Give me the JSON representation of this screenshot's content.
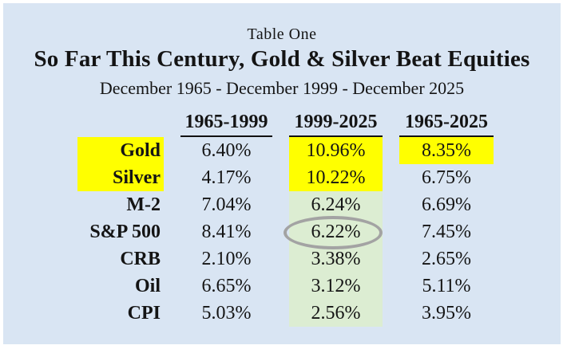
{
  "palette": {
    "canvas_bg": "#ffffff",
    "panel_bg": "#d9e5f3",
    "highlight_yellow": "#ffff00",
    "highlight_green": "#dcedd2",
    "circle_gray": "#a3a3a3",
    "text": "#141414"
  },
  "panel": {
    "caption": "Table One",
    "title": "So Far This Century, Gold & Silver Beat Equities",
    "subtitle": "December 1965 - December 1999 - December 2025"
  },
  "table": {
    "column_headers": [
      "1965-1999",
      "1999-2025",
      "1965-2025"
    ],
    "rows": [
      {
        "label": "Gold",
        "label_highlight": true,
        "values": [
          {
            "text": "6.40%",
            "bg": null
          },
          {
            "text": "10.96%",
            "bg": "yellow"
          },
          {
            "text": "8.35%",
            "bg": "yellow"
          }
        ]
      },
      {
        "label": "Silver",
        "label_highlight": true,
        "values": [
          {
            "text": "4.17%",
            "bg": null
          },
          {
            "text": "10.22%",
            "bg": "yellow"
          },
          {
            "text": "6.75%",
            "bg": null
          }
        ]
      },
      {
        "label": "M-2",
        "label_highlight": false,
        "values": [
          {
            "text": "7.04%",
            "bg": null
          },
          {
            "text": "6.24%",
            "bg": "green"
          },
          {
            "text": "6.69%",
            "bg": null
          }
        ]
      },
      {
        "label": "S&P 500",
        "label_highlight": false,
        "values": [
          {
            "text": "8.41%",
            "bg": null
          },
          {
            "text": "6.22%",
            "bg": "green",
            "circled": true
          },
          {
            "text": "7.45%",
            "bg": null
          }
        ]
      },
      {
        "label": "CRB",
        "label_highlight": false,
        "values": [
          {
            "text": "2.10%",
            "bg": null
          },
          {
            "text": "3.38%",
            "bg": "green"
          },
          {
            "text": "2.65%",
            "bg": null
          }
        ]
      },
      {
        "label": "Oil",
        "label_highlight": false,
        "values": [
          {
            "text": "6.65%",
            "bg": null
          },
          {
            "text": "3.12%",
            "bg": "green"
          },
          {
            "text": "5.11%",
            "bg": null
          }
        ]
      },
      {
        "label": "CPI",
        "label_highlight": false,
        "values": [
          {
            "text": "5.03%",
            "bg": null
          },
          {
            "text": "2.56%",
            "bg": "green"
          },
          {
            "text": "3.95%",
            "bg": null
          }
        ]
      }
    ]
  },
  "chart_data": {
    "type": "table",
    "caption": "Table One",
    "title": "So Far This Century, Gold & Silver Beat Equities",
    "subtitle": "December 1965 - December 1999 - December 2025",
    "columns": [
      "1965-1999",
      "1999-2025",
      "1965-2025"
    ],
    "row_labels": [
      "Gold",
      "Silver",
      "M-2",
      "S&P 500",
      "CRB",
      "Oil",
      "CPI"
    ],
    "values_pct": [
      [
        6.4,
        10.96,
        8.35
      ],
      [
        4.17,
        10.22,
        6.75
      ],
      [
        7.04,
        6.24,
        6.69
      ],
      [
        8.41,
        6.22,
        7.45
      ],
      [
        2.1,
        3.38,
        2.65
      ],
      [
        6.65,
        3.12,
        5.11
      ],
      [
        5.03,
        2.56,
        3.95
      ]
    ],
    "highlights": {
      "yellow_cells": [
        "Gold/1999-2025",
        "Gold/1965-2025",
        "Silver/1999-2025",
        "Gold label",
        "Silver label"
      ],
      "green_cells": [
        "M-2/1999-2025",
        "S&P 500/1999-2025",
        "CRB/1999-2025",
        "Oil/1999-2025",
        "CPI/1999-2025"
      ]
    },
    "annotations": [
      "gray ellipse circling 6.22% (S&P 500, 1999-2025)"
    ],
    "units": "percent annualized return"
  }
}
